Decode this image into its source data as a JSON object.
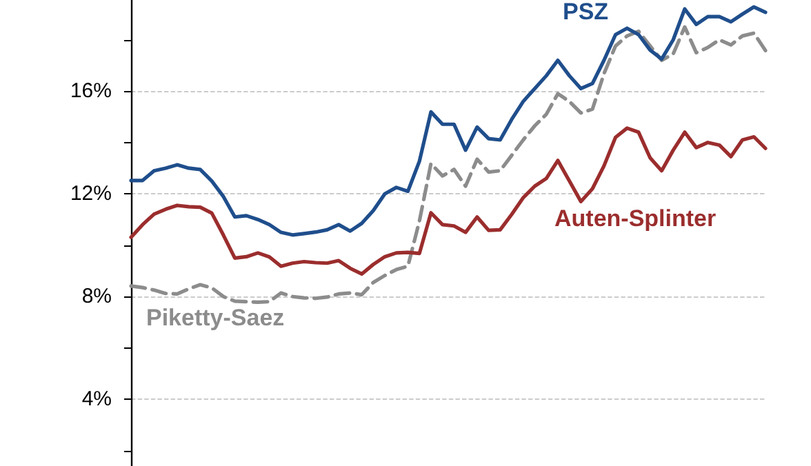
{
  "chart_data": {
    "type": "line",
    "categories": [
      null,
      null,
      null,
      null,
      null,
      null,
      null,
      null,
      null,
      null,
      null,
      null,
      null,
      null,
      null,
      null,
      null,
      null,
      null,
      null,
      null,
      null,
      null,
      null,
      null,
      null,
      null,
      null,
      null,
      null,
      null,
      null,
      null,
      null,
      null,
      null,
      null,
      null,
      null,
      null,
      null,
      null,
      null,
      null,
      null,
      null,
      null,
      null,
      null,
      null,
      null,
      null,
      null,
      null,
      null,
      null
    ],
    "series": [
      {
        "name": "PSZ",
        "color": "#1f4e8c",
        "line_style": "solid",
        "values": [
          12.52,
          12.52,
          12.9,
          13.0,
          13.13,
          13.0,
          12.95,
          12.5,
          11.9,
          11.1,
          11.15,
          11.0,
          10.8,
          10.5,
          10.4,
          10.45,
          10.51,
          10.6,
          10.8,
          10.55,
          10.85,
          11.35,
          12.0,
          12.25,
          12.1,
          13.27,
          15.19,
          14.71,
          14.71,
          13.7,
          14.6,
          14.15,
          14.1,
          14.9,
          15.6,
          16.1,
          16.6,
          17.2,
          16.6,
          16.1,
          16.3,
          17.2,
          18.2,
          18.45,
          18.2,
          17.6,
          17.25,
          18.0,
          19.2,
          18.6,
          18.9,
          18.9,
          18.7,
          19.0,
          19.28,
          19.07
        ]
      },
      {
        "name": "Auten-Splinter",
        "color": "#9b2d2d",
        "line_style": "solid",
        "values": [
          10.31,
          10.8,
          11.21,
          11.4,
          11.55,
          11.5,
          11.48,
          11.25,
          10.4,
          9.5,
          9.55,
          9.7,
          9.54,
          9.18,
          9.3,
          9.36,
          9.32,
          9.3,
          9.4,
          9.1,
          8.88,
          9.25,
          9.55,
          9.7,
          9.72,
          9.68,
          11.26,
          10.8,
          10.75,
          10.5,
          11.1,
          10.58,
          10.6,
          11.2,
          11.85,
          12.3,
          12.6,
          13.3,
          12.5,
          11.7,
          12.2,
          13.09,
          14.2,
          14.56,
          14.4,
          13.4,
          12.9,
          13.7,
          14.4,
          13.8,
          14.0,
          13.9,
          13.45,
          14.1,
          14.22,
          13.77
        ]
      },
      {
        "name": "Piketty-Saez",
        "color": "#8c8c8c",
        "line_style": "dashed",
        "values": [
          8.41,
          8.35,
          8.25,
          8.12,
          8.1,
          8.3,
          8.46,
          8.34,
          8.0,
          7.82,
          7.8,
          7.78,
          7.8,
          8.14,
          8.0,
          7.95,
          7.93,
          7.98,
          8.1,
          8.14,
          8.07,
          8.55,
          8.82,
          9.05,
          9.18,
          10.94,
          13.18,
          12.7,
          12.95,
          12.3,
          13.35,
          12.85,
          12.9,
          13.5,
          14.1,
          14.65,
          15.1,
          15.9,
          15.6,
          15.15,
          15.3,
          16.68,
          17.76,
          18.15,
          18.33,
          17.76,
          17.2,
          17.45,
          18.5,
          17.5,
          17.7,
          18.0,
          17.8,
          18.15,
          18.26,
          17.58
        ]
      }
    ],
    "ylim": [
      1.4,
      19.55
    ],
    "yticks": [
      {
        "value": 2,
        "label": null
      },
      {
        "value": 4,
        "label": "4%"
      },
      {
        "value": 6,
        "label": null
      },
      {
        "value": 8,
        "label": "8%"
      },
      {
        "value": 10,
        "label": null
      },
      {
        "value": 12,
        "label": "12%"
      },
      {
        "value": 14,
        "label": null
      },
      {
        "value": 16,
        "label": "16%"
      },
      {
        "value": 18,
        "label": null
      }
    ],
    "tick_labels": "y",
    "grid": "y",
    "legend": false
  }
}
